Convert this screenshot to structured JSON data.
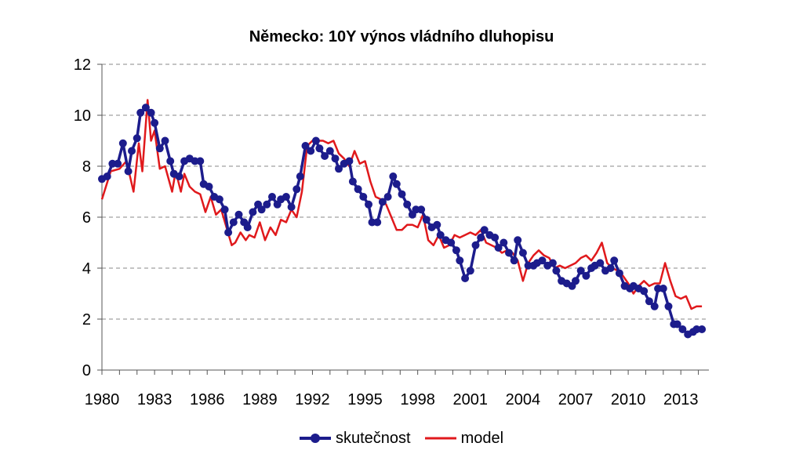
{
  "chart_data": {
    "type": "line",
    "title": "Německo: 10Y výnos vládního dluhopisu",
    "xlabel": "",
    "ylabel": "",
    "xlim": [
      1980,
      2014.6
    ],
    "ylim": [
      0,
      12
    ],
    "yticks": [
      0,
      2,
      4,
      6,
      8,
      10,
      12
    ],
    "xtick_labels": [
      "1980",
      "1983",
      "1986",
      "1989",
      "1992",
      "1995",
      "1998",
      "2001",
      "2004",
      "2007",
      "2010",
      "2013"
    ],
    "grid": "horizontal dashed",
    "legend": "bottom-center",
    "colors": {
      "actual": "#1c1c8c",
      "model": "#e0191c",
      "grid": "#888888"
    },
    "series": [
      {
        "name": "skutečnost",
        "x": [
          1980.0,
          1980.3,
          1980.6,
          1980.9,
          1981.2,
          1981.5,
          1981.7,
          1982.0,
          1982.2,
          1982.5,
          1982.8,
          1983.0,
          1983.3,
          1983.6,
          1983.9,
          1984.1,
          1984.4,
          1984.7,
          1985.0,
          1985.3,
          1985.6,
          1985.8,
          1986.1,
          1986.4,
          1986.7,
          1987.0,
          1987.2,
          1987.5,
          1987.8,
          1988.1,
          1988.3,
          1988.6,
          1988.9,
          1989.1,
          1989.4,
          1989.7,
          1990.0,
          1990.2,
          1990.5,
          1990.8,
          1991.1,
          1991.3,
          1991.6,
          1991.9,
          1992.2,
          1992.4,
          1992.7,
          1993.0,
          1993.3,
          1993.5,
          1993.8,
          1994.1,
          1994.3,
          1994.6,
          1994.9,
          1995.2,
          1995.4,
          1995.7,
          1996.0,
          1996.3,
          1996.6,
          1996.8,
          1997.1,
          1997.4,
          1997.7,
          1997.9,
          1998.2,
          1998.5,
          1998.8,
          1999.1,
          1999.3,
          1999.6,
          1999.9,
          2000.2,
          2000.4,
          2000.7,
          2001.0,
          2001.3,
          2001.6,
          2001.8,
          2002.1,
          2002.4,
          2002.6,
          2002.9,
          2003.2,
          2003.5,
          2003.7,
          2004.0,
          2004.3,
          2004.6,
          2004.8,
          2005.1,
          2005.4,
          2005.7,
          2005.9,
          2006.2,
          2006.5,
          2006.8,
          2007.0,
          2007.3,
          2007.6,
          2007.9,
          2008.1,
          2008.4,
          2008.7,
          2009.0,
          2009.2,
          2009.5,
          2009.8,
          2010.1,
          2010.3,
          2010.6,
          2010.9,
          2011.2,
          2011.5,
          2011.7,
          2012.0,
          2012.3,
          2012.6,
          2012.8,
          2013.1,
          2013.4,
          2013.7,
          2013.9,
          2014.2
        ],
        "values": [
          7.5,
          7.6,
          8.1,
          8.1,
          8.9,
          7.8,
          8.6,
          9.1,
          10.1,
          10.3,
          10.1,
          9.7,
          8.7,
          9.0,
          8.2,
          7.7,
          7.6,
          8.2,
          8.3,
          8.2,
          8.2,
          7.3,
          7.2,
          6.8,
          6.7,
          6.3,
          5.4,
          5.8,
          6.1,
          5.8,
          5.6,
          6.2,
          6.5,
          6.3,
          6.5,
          6.8,
          6.5,
          6.7,
          6.8,
          6.4,
          7.1,
          7.6,
          8.8,
          8.6,
          9.0,
          8.7,
          8.4,
          8.6,
          8.3,
          7.9,
          8.1,
          8.2,
          7.4,
          7.1,
          6.8,
          6.5,
          5.8,
          5.8,
          6.6,
          6.8,
          7.6,
          7.3,
          6.9,
          6.5,
          6.1,
          6.3,
          6.3,
          5.9,
          5.6,
          5.7,
          5.3,
          5.1,
          5.0,
          4.7,
          4.3,
          3.6,
          3.9,
          4.9,
          5.2,
          5.5,
          5.3,
          5.2,
          4.8,
          5.0,
          4.6,
          4.3,
          5.1,
          4.6,
          4.1,
          4.1,
          4.2,
          4.3,
          4.1,
          4.2,
          3.9,
          3.5,
          3.4,
          3.3,
          3.5,
          3.9,
          3.7,
          4.0,
          4.1,
          4.2,
          3.9,
          4.0,
          4.3,
          3.8,
          3.3,
          3.2,
          3.3,
          3.2,
          3.1,
          2.7,
          2.5,
          3.2,
          3.2,
          2.5,
          1.8,
          1.8,
          1.6,
          1.4,
          1.5,
          1.6,
          1.6
        ]
      },
      {
        "name": "model",
        "x": [
          1980.0,
          1980.5,
          1981.0,
          1981.4,
          1981.8,
          1982.1,
          1982.3,
          1982.6,
          1982.8,
          1983.0,
          1983.3,
          1983.6,
          1984.0,
          1984.2,
          1984.5,
          1984.7,
          1985.0,
          1985.3,
          1985.6,
          1985.9,
          1986.2,
          1986.5,
          1986.8,
          1987.1,
          1987.4,
          1987.6,
          1987.9,
          1988.2,
          1988.4,
          1988.7,
          1989.0,
          1989.3,
          1989.6,
          1989.9,
          1990.2,
          1990.5,
          1990.8,
          1991.1,
          1991.4,
          1991.7,
          1992.0,
          1992.3,
          1992.6,
          1992.9,
          1993.2,
          1993.5,
          1993.8,
          1994.1,
          1994.4,
          1994.7,
          1995.0,
          1995.3,
          1995.6,
          1995.9,
          1996.2,
          1996.5,
          1996.8,
          1997.1,
          1997.4,
          1997.7,
          1998.0,
          1998.3,
          1998.6,
          1998.9,
          1999.2,
          1999.5,
          1999.8,
          2000.1,
          2000.4,
          2000.7,
          2001.0,
          2001.3,
          2001.6,
          2001.9,
          2002.2,
          2002.5,
          2002.8,
          2003.1,
          2003.4,
          2003.7,
          2004.0,
          2004.3,
          2004.6,
          2004.9,
          2005.2,
          2005.5,
          2005.8,
          2006.1,
          2006.4,
          2006.7,
          2007.0,
          2007.3,
          2007.6,
          2007.9,
          2008.2,
          2008.5,
          2008.8,
          2009.1,
          2009.4,
          2009.7,
          2010.0,
          2010.3,
          2010.6,
          2010.9,
          2011.2,
          2011.5,
          2011.8,
          2012.1,
          2012.4,
          2012.7,
          2013.0,
          2013.3,
          2013.6,
          2013.9,
          2014.2
        ],
        "values": [
          6.7,
          7.8,
          7.9,
          8.2,
          7.0,
          8.9,
          7.8,
          10.6,
          9.0,
          9.4,
          7.9,
          8.0,
          7.0,
          7.8,
          7.0,
          7.7,
          7.2,
          7.0,
          6.9,
          6.2,
          6.8,
          6.1,
          6.3,
          5.6,
          4.9,
          5.0,
          5.4,
          5.1,
          5.3,
          5.2,
          5.8,
          5.1,
          5.6,
          5.3,
          5.9,
          5.8,
          6.3,
          6.0,
          7.0,
          8.8,
          9.0,
          9.0,
          9.0,
          8.9,
          9.0,
          8.5,
          8.3,
          8.0,
          8.6,
          8.1,
          8.2,
          7.4,
          6.8,
          6.7,
          6.5,
          6.0,
          5.5,
          5.5,
          5.7,
          5.7,
          5.6,
          6.1,
          5.1,
          4.9,
          5.3,
          4.8,
          4.9,
          5.3,
          5.2,
          5.3,
          5.4,
          5.3,
          5.5,
          5.0,
          4.9,
          4.8,
          4.6,
          4.7,
          4.6,
          4.3,
          3.5,
          4.2,
          4.5,
          4.7,
          4.5,
          4.4,
          4.0,
          4.1,
          4.0,
          4.1,
          4.2,
          4.4,
          4.5,
          4.3,
          4.6,
          5.0,
          4.2,
          4.0,
          3.9,
          3.7,
          3.4,
          3.0,
          3.3,
          3.5,
          3.3,
          3.4,
          3.4,
          4.2,
          3.5,
          2.9,
          2.8,
          2.9,
          2.4,
          2.5,
          2.5
        ]
      }
    ]
  }
}
